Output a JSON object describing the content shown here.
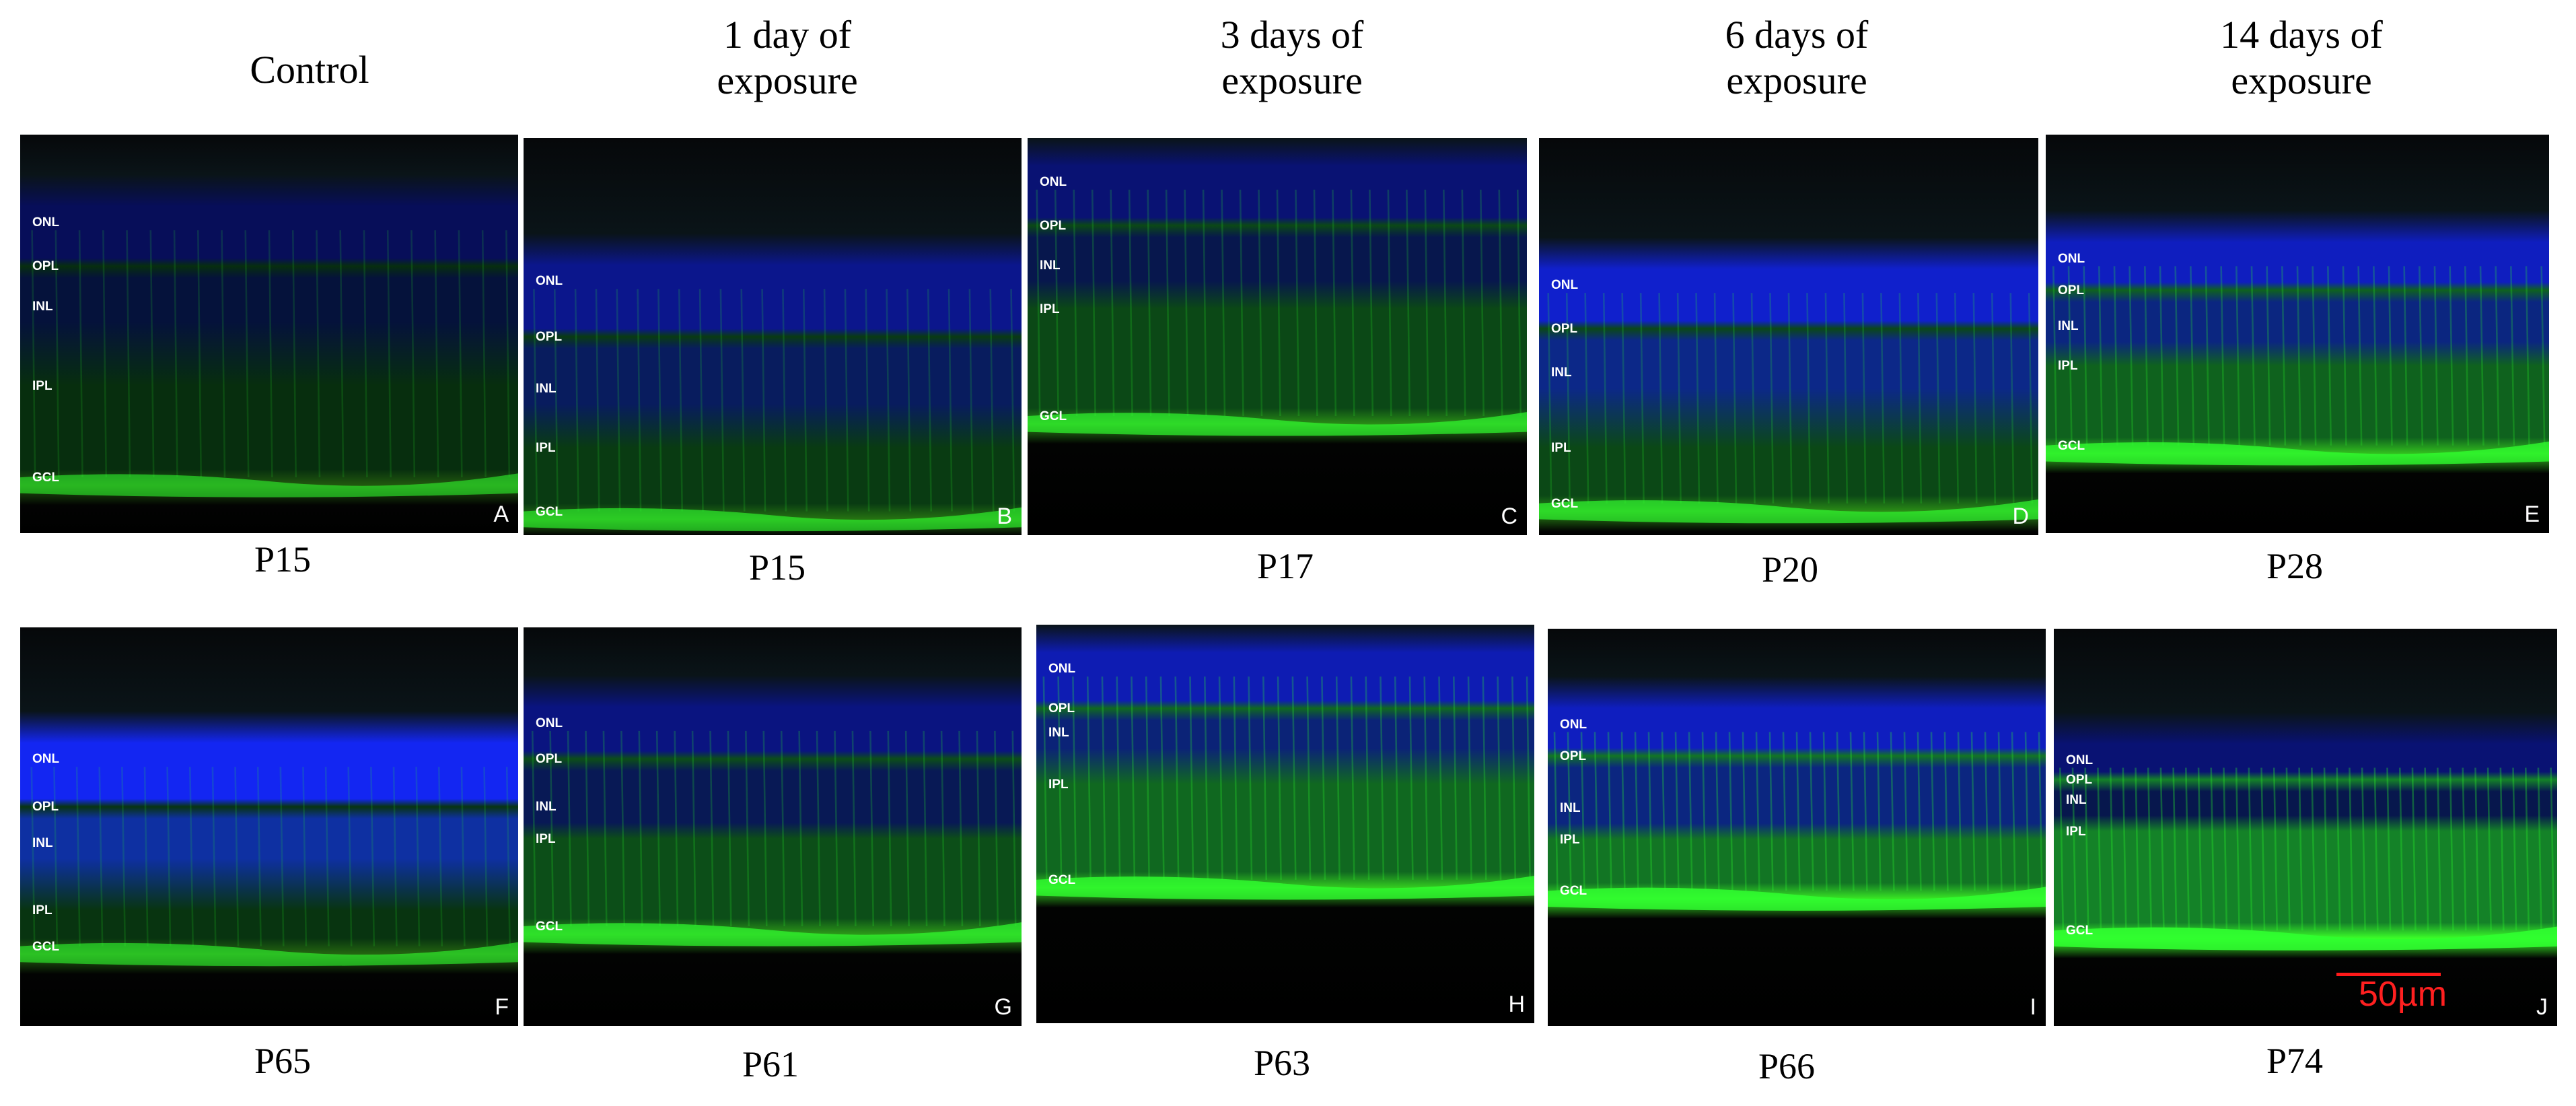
{
  "headers": [
    {
      "lines": [
        "Control"
      ]
    },
    {
      "lines": [
        "1 day of",
        "exposure"
      ]
    },
    {
      "lines": [
        "3 days of",
        "exposure"
      ]
    },
    {
      "lines": [
        "6 days of",
        "exposure"
      ]
    },
    {
      "lines": [
        "14 days of",
        "exposure"
      ]
    }
  ],
  "panels": [
    {
      "letter": "A",
      "age": "P15",
      "layers": [
        "ONL",
        "OPL",
        "INL",
        "IPL",
        "GCL"
      ],
      "blue_intensity": 0.35,
      "green_intensity": 0.35
    },
    {
      "letter": "B",
      "age": "P15",
      "layers": [
        "ONL",
        "OPL",
        "INL",
        "IPL",
        "GCL"
      ],
      "blue_intensity": 0.55,
      "green_intensity": 0.45
    },
    {
      "letter": "C",
      "age": "P17",
      "layers": [
        "ONL",
        "OPL",
        "INL",
        "IPL",
        "GCL"
      ],
      "blue_intensity": 0.45,
      "green_intensity": 0.55
    },
    {
      "letter": "D",
      "age": "P20",
      "layers": [
        "ONL",
        "OPL",
        "INL",
        "IPL",
        "GCL"
      ],
      "blue_intensity": 0.8,
      "green_intensity": 0.55
    },
    {
      "letter": "E",
      "age": "P28",
      "layers": [
        "ONL",
        "OPL",
        "INL",
        "IPL",
        "GCL"
      ],
      "blue_intensity": 0.75,
      "green_intensity": 0.75
    },
    {
      "letter": "F",
      "age": "P65",
      "layers": [
        "ONL",
        "OPL",
        "INL",
        "IPL",
        "GCL"
      ],
      "blue_intensity": 0.95,
      "green_intensity": 0.4
    },
    {
      "letter": "G",
      "age": "P61",
      "layers": [
        "ONL",
        "OPL",
        "INL",
        "IPL",
        "GCL"
      ],
      "blue_intensity": 0.5,
      "green_intensity": 0.6
    },
    {
      "letter": "H",
      "age": "P63",
      "layers": [
        "ONL",
        "OPL",
        "INL",
        "IPL",
        "GCL"
      ],
      "blue_intensity": 0.7,
      "green_intensity": 0.8
    },
    {
      "letter": "I",
      "age": "P66",
      "layers": [
        "ONL",
        "OPL",
        "INL",
        "IPL",
        "GCL"
      ],
      "blue_intensity": 0.75,
      "green_intensity": 0.9
    },
    {
      "letter": "J",
      "age": "P74",
      "layers": [
        "ONL",
        "OPL",
        "INL",
        "IPL",
        "GCL"
      ],
      "blue_intensity": 0.45,
      "green_intensity": 1.0
    }
  ],
  "scale_bar": {
    "label": "50µm",
    "color": "#ff2020"
  },
  "colors": {
    "nucleus_stain": "#1a2cff",
    "gfap_stain": "#1cff1c",
    "background": "#000000"
  }
}
